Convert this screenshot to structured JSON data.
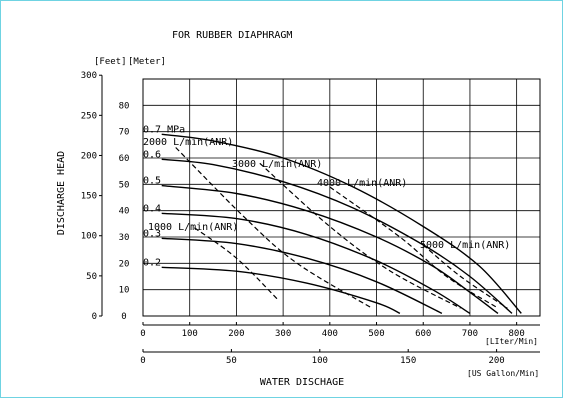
{
  "chart_data": {
    "type": "line",
    "title": "FOR RUBBER DIAPHRAGM",
    "ylabel": "DISCHARGE HEAD",
    "xlabel": "WATER DISCHAGE",
    "feet_unit": "[Feet]",
    "meter_unit": "[Meter]",
    "lpm_unit": "[LIter/Min]",
    "gpm_unit": "[US Gallon/Min]",
    "xlim_lpm": [
      0,
      850
    ],
    "ylim_m": [
      0,
      90
    ],
    "grid": true,
    "meter_ticks": [
      "0",
      "10",
      "20",
      "30",
      "40",
      "50",
      "60",
      "70",
      "80"
    ],
    "feet_ticks": [
      "0",
      "50",
      "100",
      "150",
      "200",
      "250",
      "300"
    ],
    "lpm_ticks": [
      "0",
      "100",
      "200",
      "300",
      "400",
      "500",
      "600",
      "700",
      "800"
    ],
    "gpm_ticks": [
      "0",
      "50",
      "100",
      "150",
      "200"
    ],
    "pressure_curves": [
      {
        "label": "0.7 MPa",
        "points": [
          [
            40,
            69
          ],
          [
            150,
            66.5
          ],
          [
            300,
            60
          ],
          [
            450,
            49
          ],
          [
            600,
            34
          ],
          [
            720,
            19
          ],
          [
            810,
            1
          ]
        ]
      },
      {
        "label": "0.6",
        "points": [
          [
            40,
            59.5
          ],
          [
            150,
            57.5
          ],
          [
            300,
            51
          ],
          [
            450,
            41
          ],
          [
            600,
            27
          ],
          [
            700,
            15
          ],
          [
            790,
            1
          ]
        ]
      },
      {
        "label": "0.5",
        "points": [
          [
            40,
            49.5
          ],
          [
            200,
            46.5
          ],
          [
            350,
            40
          ],
          [
            500,
            30
          ],
          [
            620,
            19
          ],
          [
            700,
            9
          ],
          [
            760,
            1
          ]
        ]
      },
      {
        "label": "0.4",
        "points": [
          [
            40,
            39
          ],
          [
            200,
            37
          ],
          [
            350,
            31
          ],
          [
            500,
            21
          ],
          [
            620,
            10
          ],
          [
            700,
            1
          ]
        ]
      },
      {
        "label": "0.3",
        "points": [
          [
            40,
            29.5
          ],
          [
            200,
            27.5
          ],
          [
            350,
            22
          ],
          [
            500,
            13
          ],
          [
            640,
            1
          ]
        ]
      },
      {
        "label": "0.2",
        "points": [
          [
            40,
            18.5
          ],
          [
            200,
            17
          ],
          [
            350,
            12.5
          ],
          [
            500,
            5
          ],
          [
            550,
            1
          ]
        ]
      }
    ],
    "air_curves": [
      {
        "label": "1000 L/min(ANR)",
        "points": [
          [
            110,
            33.5
          ],
          [
            200,
            22
          ],
          [
            290,
            6
          ]
        ]
      },
      {
        "label": "2000 L/min(ANR)",
        "points": [
          [
            70,
            64
          ],
          [
            220,
            37
          ],
          [
            330,
            20
          ],
          [
            490,
            3
          ]
        ]
      },
      {
        "label": "3000 L/min(ANR)",
        "points": [
          [
            250,
            58
          ],
          [
            400,
            34
          ],
          [
            530,
            17
          ],
          [
            680,
            3
          ]
        ]
      },
      {
        "label": "4000 L/min(ANR)",
        "points": [
          [
            400,
            49
          ],
          [
            550,
            30
          ],
          [
            650,
            15
          ],
          [
            760,
            3
          ]
        ]
      },
      {
        "label": "5000 L/min(ANR)",
        "points": [
          [
            600,
            27
          ],
          [
            680,
            15
          ],
          [
            780,
            3
          ]
        ]
      }
    ]
  }
}
